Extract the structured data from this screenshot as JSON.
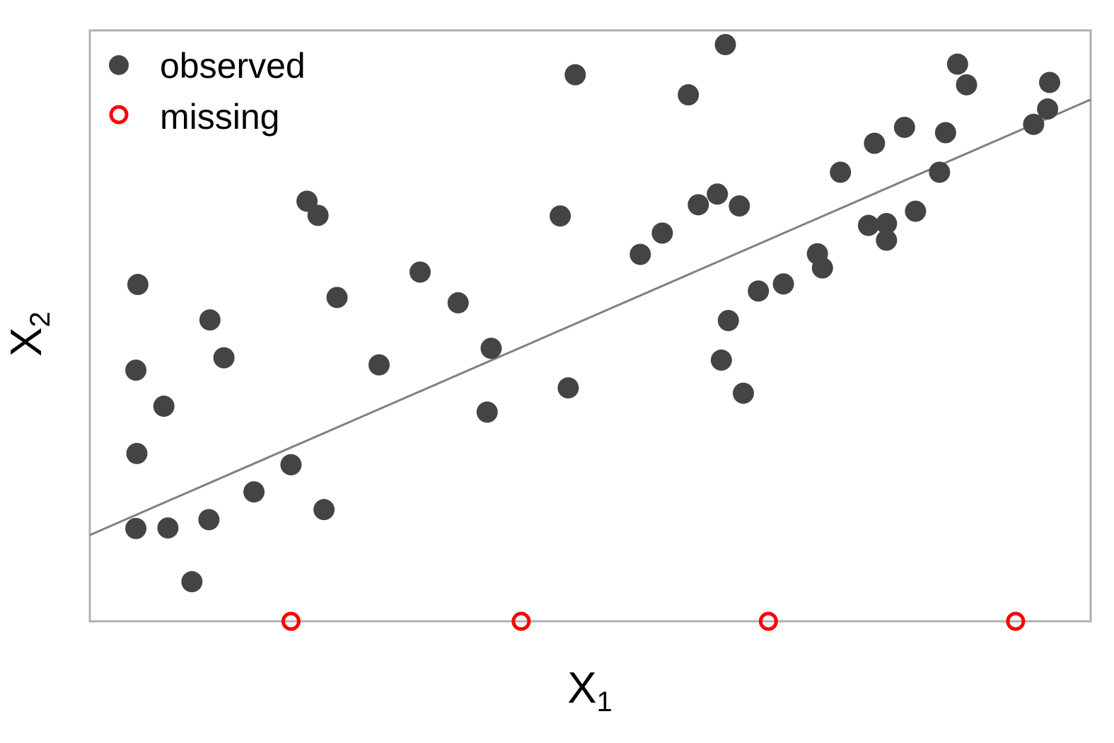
{
  "chart_data": {
    "type": "scatter",
    "xlabel": "X",
    "xlabel_sub": "1",
    "ylabel": "X",
    "ylabel_sub": "2",
    "xlim": [
      0,
      100
    ],
    "ylim": [
      0,
      100
    ],
    "grid": false,
    "ticks_shown": false,
    "legend_position": "top-left",
    "legend": [
      {
        "label": "observed",
        "marker": "filled-circle",
        "color": "#444444"
      },
      {
        "label": "missing",
        "marker": "open-circle",
        "color": "#ff0000"
      }
    ],
    "series": [
      {
        "name": "observed",
        "color": "#444444",
        "points": [
          [
            63.5,
            97.6
          ],
          [
            47.0,
            68.6
          ],
          [
            48.5,
            92.5
          ],
          [
            36.8,
            53.9
          ],
          [
            21.7,
            71.1
          ],
          [
            4.6,
            15.7
          ],
          [
            4.7,
            28.4
          ],
          [
            4.6,
            42.5
          ],
          [
            4.8,
            57.0
          ],
          [
            7.4,
            36.4
          ],
          [
            10.2,
            6.7
          ],
          [
            7.8,
            15.8
          ],
          [
            12.0,
            51.0
          ],
          [
            11.9,
            17.2
          ],
          [
            13.4,
            44.6
          ],
          [
            16.4,
            21.9
          ],
          [
            20.1,
            26.5
          ],
          [
            22.8,
            68.7
          ],
          [
            23.4,
            18.9
          ],
          [
            24.7,
            54.8
          ],
          [
            28.9,
            43.4
          ],
          [
            33.0,
            59.1
          ],
          [
            39.7,
            35.4
          ],
          [
            40.1,
            46.2
          ],
          [
            47.8,
            39.5
          ],
          [
            55.0,
            62.1
          ],
          [
            57.2,
            65.7
          ],
          [
            59.8,
            89.1
          ],
          [
            60.8,
            70.5
          ],
          [
            62.7,
            72.3
          ],
          [
            63.1,
            44.2
          ],
          [
            63.8,
            50.9
          ],
          [
            64.9,
            70.3
          ],
          [
            65.3,
            38.6
          ],
          [
            66.8,
            55.9
          ],
          [
            69.3,
            57.1
          ],
          [
            72.7,
            62.2
          ],
          [
            73.2,
            59.8
          ],
          [
            75.0,
            76.0
          ],
          [
            77.8,
            67.0
          ],
          [
            78.4,
            80.9
          ],
          [
            79.6,
            67.3
          ],
          [
            79.6,
            64.5
          ],
          [
            81.4,
            83.6
          ],
          [
            82.5,
            69.4
          ],
          [
            84.9,
            76.0
          ],
          [
            85.5,
            82.7
          ],
          [
            86.7,
            94.3
          ],
          [
            87.6,
            90.8
          ],
          [
            94.3,
            84.1
          ],
          [
            95.9,
            91.2
          ],
          [
            95.7,
            86.7
          ]
        ]
      },
      {
        "name": "missing",
        "color": "#ff0000",
        "points": [
          [
            20.1,
            0
          ],
          [
            43.1,
            0
          ],
          [
            67.8,
            0
          ],
          [
            92.5,
            0
          ]
        ]
      }
    ],
    "regression_line": {
      "color": "#808080",
      "x": [
        0,
        100
      ],
      "y": [
        14.6,
        88.3
      ]
    }
  }
}
